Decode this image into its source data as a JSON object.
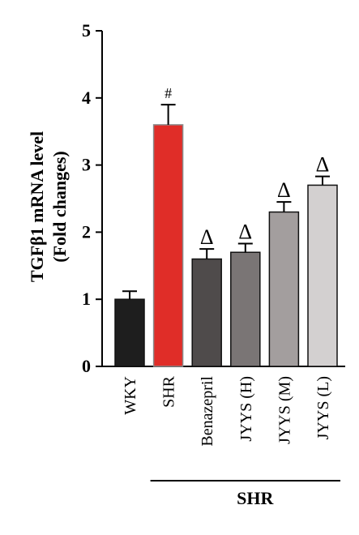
{
  "chart_data": {
    "type": "bar",
    "ylabel_line1": "TGFβ1 mRNA level",
    "ylabel_line2": "(Fold changes)",
    "ylim": [
      0,
      5
    ],
    "yticks": [
      "0",
      "1",
      "2",
      "3",
      "4",
      "5"
    ],
    "categories": [
      "WKY",
      "SHR",
      "Benazepril",
      "JYYS (H)",
      "JYYS (M)",
      "JYYS (L)"
    ],
    "values": [
      1.0,
      3.6,
      1.6,
      1.7,
      2.3,
      2.7
    ],
    "errors": [
      0.12,
      0.3,
      0.15,
      0.13,
      0.15,
      0.13
    ],
    "annotations": [
      "",
      "#",
      "Δ",
      "Δ",
      "Δ",
      "Δ"
    ],
    "colors": [
      "#1e1e1e",
      "#e02d28",
      "#4f4b4b",
      "#7a7575",
      "#a39e9e",
      "#d3d0d0"
    ],
    "group_label": "SHR",
    "group_range": [
      1,
      5
    ]
  }
}
